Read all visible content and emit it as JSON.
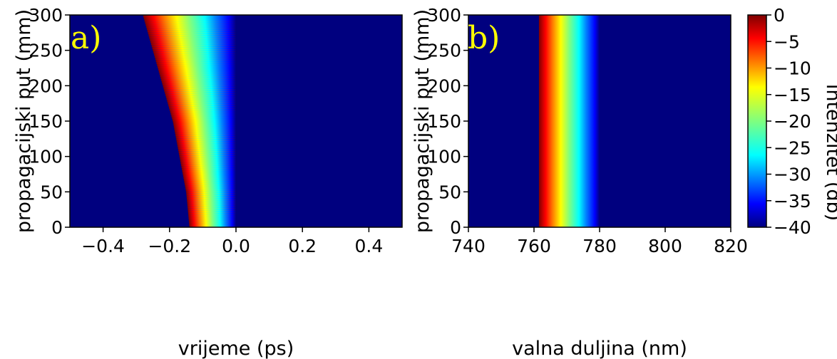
{
  "chart_data": [
    {
      "type": "heatmap",
      "panel_label": "a)",
      "xlabel": "vrijeme (ps)",
      "ylabel": "propagacijski put (mm)",
      "xlim": [
        -0.5,
        0.5
      ],
      "ylim": [
        0,
        300
      ],
      "xticks": [
        -0.4,
        -0.2,
        0.0,
        0.2,
        0.4
      ],
      "xtick_labels": [
        "−0.4",
        "−0.2",
        "0.0",
        "0.2",
        "0.4"
      ],
      "yticks": [
        0,
        50,
        100,
        150,
        200,
        250,
        300
      ],
      "ytick_labels": [
        "0",
        "50",
        "100",
        "150",
        "200",
        "250",
        "300"
      ],
      "center": 0.0,
      "half_width_at_40db": {
        "propagation_mm": [
          0,
          50,
          100,
          150,
          200,
          250,
          300
        ],
        "values": [
          0.14,
          0.15,
          0.17,
          0.19,
          0.22,
          0.25,
          0.28
        ]
      }
    },
    {
      "type": "heatmap",
      "panel_label": "b)",
      "xlabel": "valna duljina (nm)",
      "ylabel": "propagacijski put (mm)",
      "xlim": [
        740,
        820
      ],
      "ylim": [
        0,
        300
      ],
      "xticks": [
        740,
        760,
        780,
        800,
        820
      ],
      "xtick_labels": [
        "740",
        "760",
        "780",
        "800",
        "820"
      ],
      "yticks": [
        0,
        50,
        100,
        150,
        200,
        250,
        300
      ],
      "ytick_labels": [
        "0",
        "50",
        "100",
        "150",
        "200",
        "250",
        "300"
      ],
      "center": 780,
      "half_width_at_40db": {
        "propagation_mm": [
          0,
          300
        ],
        "values": [
          18.5,
          18.5
        ]
      }
    }
  ],
  "colorbar": {
    "label": "intenzitet (db)",
    "range": [
      -40,
      0
    ],
    "ticks": [
      0,
      -5,
      -10,
      -15,
      -20,
      -25,
      -30,
      -35,
      -40
    ],
    "tick_labels": [
      "0",
      "−5",
      "−10",
      "−15",
      "−20",
      "−25",
      "−30",
      "−35",
      "−40"
    ],
    "colormap": [
      "#00007f",
      "#0000ff",
      "#007fff",
      "#00ffff",
      "#7fff7f",
      "#ffff00",
      "#ff7f00",
      "#ff0000",
      "#7f0000"
    ]
  }
}
